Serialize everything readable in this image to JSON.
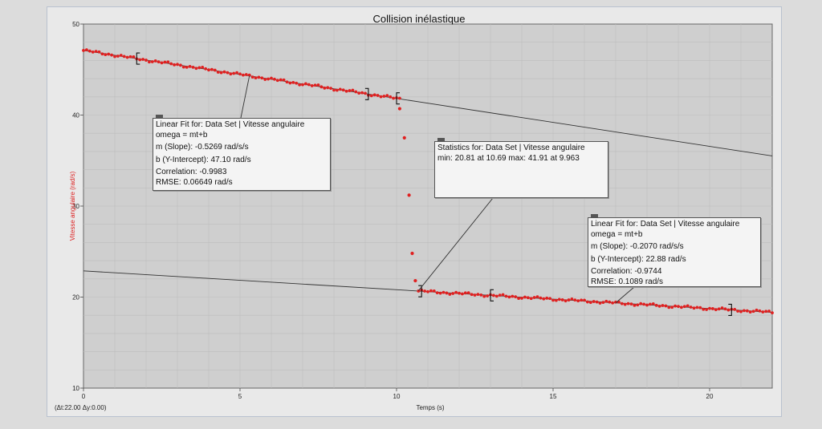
{
  "chart_data": {
    "type": "scatter",
    "title": "Collision inélastique",
    "xlabel": "Temps (s)",
    "ylabel": "Vitesse angulaire (rad/s)",
    "xlim": [
      0,
      22
    ],
    "ylim": [
      10,
      50
    ],
    "x_ticks": [
      "0",
      "5",
      "10",
      "15",
      "20"
    ],
    "y_ticks": [
      "10",
      "20",
      "30",
      "40",
      "50"
    ],
    "grid": true,
    "series": [
      {
        "color": "#e02020",
        "segments": [
          {
            "x_start": 0.0,
            "x_end": 10.1,
            "step": 0.1,
            "slope": -0.5269,
            "intercept": 47.1
          },
          {
            "x_start": 10.7,
            "x_end": 22.0,
            "step": 0.1,
            "slope": -0.207,
            "intercept": 22.88
          }
        ],
        "transition_points": [
          {
            "x": 10.1,
            "y": 40.7
          },
          {
            "x": 10.25,
            "y": 37.5
          },
          {
            "x": 10.4,
            "y": 31.2
          },
          {
            "x": 10.5,
            "y": 24.8
          },
          {
            "x": 10.6,
            "y": 21.8
          }
        ]
      }
    ],
    "fit_lines": [
      {
        "slope": -0.5269,
        "intercept": 47.1,
        "x_range": [
          0,
          22
        ],
        "bracket": [
          1.7,
          9.1
        ]
      },
      {
        "slope": -0.207,
        "intercept": 22.88,
        "x_range": [
          0,
          22
        ],
        "bracket": [
          13.0,
          20.7
        ]
      }
    ],
    "stats_bracket": [
      10.0,
      10.8
    ],
    "annotations": {
      "fit1": {
        "line1": "Linear Fit for: Data Set | Vitesse angulaire",
        "line2": "omega = mt+b",
        "line3": "m (Slope): -0.5269 rad/s/s",
        "line4": "b (Y-Intercept): 47.10 rad/s",
        "line5": "Correlation: -0.9983",
        "line6": "RMSE: 0.06649 rad/s"
      },
      "stats": {
        "line1": "Statistics for: Data Set | Vitesse angulaire",
        "line2": "min: 20.81 at 10.69 max: 41.91 at 9.963"
      },
      "fit2": {
        "line1": "Linear Fit for: Data Set | Vitesse angulaire",
        "line2": "omega = mt+b",
        "line3": "m (Slope): -0.2070 rad/s/s",
        "line4": "b (Y-Intercept): 22.88 rad/s",
        "line5": "Correlation: -0.9744",
        "line6": "RMSE: 0.1089 rad/s"
      }
    },
    "footer_text": "(Δt:22.00 Δy:0.00)"
  }
}
